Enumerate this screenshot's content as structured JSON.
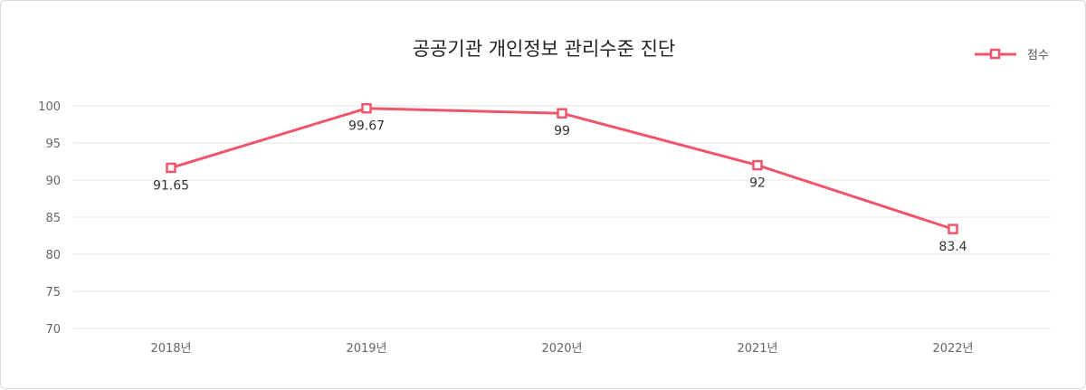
{
  "chart_data": {
    "type": "line",
    "title": "공공기관 개인정보 관리수준 진단",
    "categories": [
      "2018년",
      "2019년",
      "2020년",
      "2021년",
      "2022년"
    ],
    "series": [
      {
        "name": "점수",
        "values": [
          91.65,
          99.67,
          99,
          92,
          83.4
        ],
        "labels": [
          "91.65",
          "99.67",
          "99",
          "92",
          "83.4"
        ],
        "color": "#f0566b"
      }
    ],
    "ylim": [
      70,
      100
    ],
    "yticks": [
      70,
      75,
      80,
      85,
      90,
      95,
      100
    ],
    "grid": true,
    "legend": "top-right",
    "xlabel": "",
    "ylabel": ""
  }
}
